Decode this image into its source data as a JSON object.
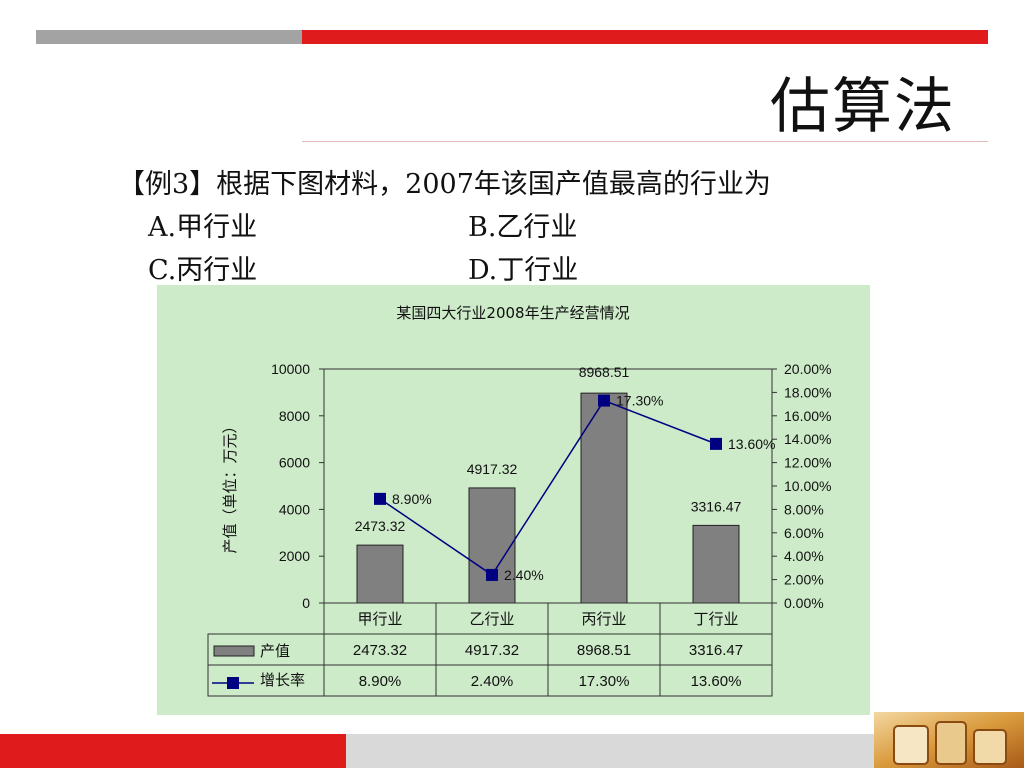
{
  "slide": {
    "title": "估算法",
    "question": "【例3】根据下图材料，2007年该国产值最高的行业为",
    "options": [
      "A.甲行业",
      "B.乙行业",
      "C.丙行业",
      "D.丁行业"
    ]
  },
  "colors": {
    "accent_red": "#e01b1b",
    "bar_gray": "#808080",
    "line_blue": "#000080",
    "panel_green": "#cdeac9"
  },
  "chart_data": {
    "type": "bar",
    "title": "某国四大行业2008年生产经营情况",
    "categories": [
      "甲行业",
      "乙行业",
      "丙行业",
      "丁行业"
    ],
    "ylabel": "产值（单位：万元）",
    "ylim": [
      0,
      10000
    ],
    "yticks": [
      0,
      2000,
      4000,
      6000,
      8000,
      10000
    ],
    "y2lim": [
      0,
      20
    ],
    "y2ticks": [
      "0.00%",
      "2.00%",
      "4.00%",
      "6.00%",
      "8.00%",
      "10.00%",
      "12.00%",
      "14.00%",
      "16.00%",
      "18.00%",
      "20.00%"
    ],
    "series": [
      {
        "name": "产值",
        "type": "bar",
        "values": [
          2473.32,
          4917.32,
          8968.51,
          3316.47
        ],
        "labels": [
          "2473.32",
          "4917.32",
          "8968.51",
          "3316.47"
        ]
      },
      {
        "name": "增长率",
        "type": "line",
        "axis": "secondary",
        "values": [
          8.9,
          2.4,
          17.3,
          13.6
        ],
        "labels": [
          "8.90%",
          "2.40%",
          "17.30%",
          "13.60%"
        ]
      }
    ],
    "grid": false,
    "legend": "data-table"
  }
}
